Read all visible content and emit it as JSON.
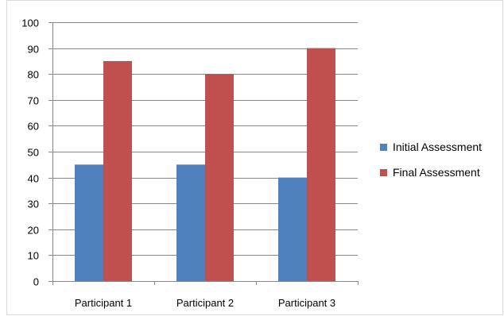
{
  "chart_data": {
    "type": "bar",
    "categories": [
      "Participant 1",
      "Participant 2",
      "Participant 3"
    ],
    "series": [
      {
        "name": "Initial Assessment",
        "values": [
          45,
          45,
          40
        ],
        "color": "#4f81bd"
      },
      {
        "name": "Final Assessment",
        "values": [
          85,
          80,
          90
        ],
        "color": "#c0504d"
      }
    ],
    "ylim": [
      0,
      100
    ],
    "yticks": [
      0,
      10,
      20,
      30,
      40,
      50,
      60,
      70,
      80,
      90,
      100
    ],
    "grid": true,
    "legend": "right",
    "title": "",
    "xlabel": "",
    "ylabel": ""
  }
}
